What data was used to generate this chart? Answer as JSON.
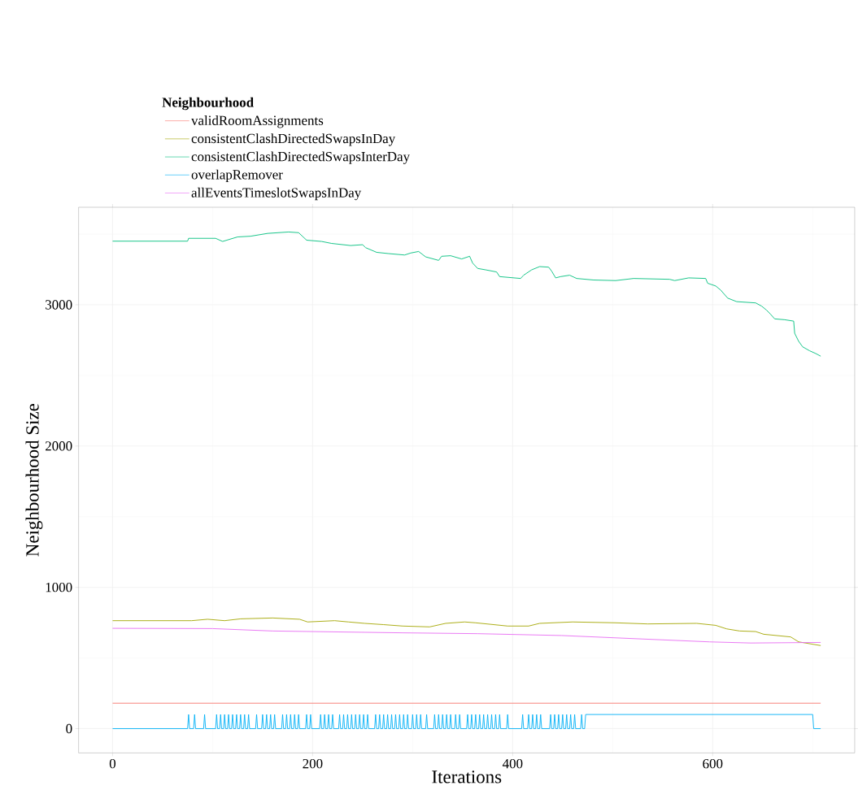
{
  "chart_data": {
    "type": "line",
    "xlabel": "Iterations",
    "ylabel": "Neighbourhood Size",
    "legend_title": "Neighbourhood",
    "xlim": [
      -34,
      742
    ],
    "ylim": [
      -172,
      3690
    ],
    "xticks": [
      0,
      200,
      400,
      600
    ],
    "yticks": [
      0,
      1000,
      2000,
      3000
    ],
    "grid": true,
    "legend": "top",
    "marker": "none",
    "line_style": "solid",
    "series": [
      {
        "name": "validRoomAssignments",
        "color": "#f8766d",
        "x": [
          0,
          708
        ],
        "values": [
          180,
          180
        ]
      },
      {
        "name": "consistentClashDirectedSwapsInDay",
        "color": "#a3a500",
        "x": [
          0,
          79,
          95,
          112,
          128,
          160,
          187,
          195,
          222,
          236,
          252,
          271,
          290,
          317,
          333,
          352,
          363,
          395,
          416,
          427,
          460,
          503,
          535,
          584,
          603,
          614,
          627,
          643,
          651,
          678,
          686,
          708
        ],
        "values": [
          764,
          764,
          774,
          764,
          777,
          783,
          774,
          755,
          764,
          755,
          745,
          736,
          726,
          720,
          745,
          755,
          749,
          726,
          726,
          745,
          755,
          749,
          741,
          745,
          731,
          706,
          691,
          687,
          668,
          649,
          614,
          588
        ]
      },
      {
        "name": "consistentClashDirectedSwapsInterDay",
        "color": "#00bf7d",
        "x": [
          0,
          75,
          76,
          103,
          110,
          125,
          138,
          155,
          176,
          186,
          194,
          209,
          219,
          238,
          250,
          253,
          264,
          276,
          292,
          298,
          306,
          313,
          326,
          329,
          338,
          349,
          357,
          360,
          365,
          373,
          384,
          387,
          408,
          411,
          419,
          427,
          436,
          439,
          443,
          448,
          457,
          464,
          481,
          503,
          521,
          557,
          562,
          576,
          593,
          595,
          603,
          608,
          615,
          624,
          643,
          649,
          654,
          658,
          662,
          672,
          681,
          682,
          686,
          690,
          697,
          703,
          708
        ],
        "values": [
          3450,
          3450,
          3470,
          3470,
          3448,
          3480,
          3485,
          3505,
          3515,
          3510,
          3457,
          3448,
          3434,
          3419,
          3425,
          3404,
          3371,
          3362,
          3352,
          3366,
          3377,
          3339,
          3314,
          3343,
          3347,
          3324,
          3343,
          3295,
          3257,
          3247,
          3232,
          3199,
          3186,
          3209,
          3247,
          3270,
          3266,
          3238,
          3190,
          3199,
          3209,
          3186,
          3175,
          3171,
          3186,
          3180,
          3171,
          3190,
          3186,
          3152,
          3133,
          3104,
          3047,
          3022,
          3013,
          2990,
          2961,
          2932,
          2900,
          2894,
          2884,
          2798,
          2741,
          2702,
          2674,
          2655,
          2636
        ]
      },
      {
        "name": "overlapRemover",
        "color": "#00b0f6",
        "x": [
          0,
          75,
          76,
          77,
          81,
          82,
          83,
          91,
          92,
          93,
          103,
          104,
          105,
          107,
          108,
          109,
          111,
          112,
          113,
          115,
          116,
          117,
          119,
          120,
          121,
          123,
          124,
          125,
          127,
          128,
          129,
          131,
          132,
          133,
          135,
          136,
          137,
          143,
          144,
          145,
          149,
          150,
          151,
          153,
          154,
          155,
          157,
          158,
          159,
          161,
          162,
          163,
          169,
          170,
          171,
          173,
          174,
          175,
          177,
          178,
          179,
          181,
          182,
          183,
          185,
          186,
          187,
          193,
          194,
          195,
          197,
          198,
          199,
          207,
          208,
          209,
          211,
          212,
          213,
          215,
          216,
          217,
          219,
          220,
          221,
          226,
          227,
          228,
          230,
          231,
          232,
          234,
          235,
          236,
          238,
          239,
          240,
          242,
          243,
          244,
          246,
          247,
          248,
          250,
          251,
          252,
          254,
          255,
          256,
          262,
          263,
          264,
          266,
          267,
          268,
          270,
          271,
          272,
          274,
          275,
          276,
          278,
          279,
          280,
          282,
          283,
          284,
          286,
          287,
          288,
          290,
          291,
          292,
          294,
          295,
          296,
          299,
          300,
          301,
          303,
          304,
          305,
          307,
          308,
          309,
          313,
          314,
          315,
          321,
          322,
          323,
          325,
          326,
          327,
          329,
          330,
          331,
          333,
          334,
          335,
          337,
          338,
          339,
          342,
          343,
          344,
          346,
          347,
          348,
          354,
          355,
          356,
          358,
          359,
          360,
          362,
          363,
          364,
          366,
          367,
          368,
          370,
          371,
          372,
          374,
          375,
          376,
          378,
          379,
          380,
          382,
          383,
          384,
          386,
          387,
          388,
          394,
          395,
          396,
          409,
          410,
          411,
          415,
          416,
          417,
          419,
          420,
          421,
          423,
          424,
          425,
          427,
          428,
          429,
          437,
          438,
          439,
          441,
          442,
          443,
          445,
          446,
          447,
          449,
          450,
          451,
          453,
          454,
          455,
          457,
          458,
          459,
          461,
          462,
          463,
          468,
          469,
          470,
          472,
          473,
          700,
          701,
          708
        ],
        "values": [
          0,
          0,
          100,
          0,
          0,
          100,
          0,
          0,
          100,
          0,
          0,
          100,
          0,
          0,
          100,
          0,
          0,
          100,
          0,
          0,
          100,
          0,
          0,
          100,
          0,
          0,
          100,
          0,
          0,
          100,
          0,
          0,
          100,
          0,
          0,
          100,
          0,
          0,
          100,
          0,
          0,
          100,
          0,
          0,
          100,
          0,
          0,
          100,
          0,
          0,
          100,
          0,
          0,
          100,
          0,
          0,
          100,
          0,
          0,
          100,
          0,
          0,
          100,
          0,
          0,
          100,
          0,
          0,
          100,
          0,
          0,
          100,
          0,
          0,
          100,
          0,
          0,
          100,
          0,
          0,
          100,
          0,
          0,
          100,
          0,
          0,
          100,
          0,
          0,
          100,
          0,
          0,
          100,
          0,
          0,
          100,
          0,
          0,
          100,
          0,
          0,
          100,
          0,
          0,
          100,
          0,
          0,
          100,
          0,
          0,
          100,
          0,
          0,
          100,
          0,
          0,
          100,
          0,
          0,
          100,
          0,
          0,
          100,
          0,
          0,
          100,
          0,
          0,
          100,
          0,
          0,
          100,
          0,
          0,
          100,
          0,
          0,
          100,
          0,
          0,
          100,
          0,
          0,
          100,
          0,
          0,
          100,
          0,
          0,
          100,
          0,
          0,
          100,
          0,
          0,
          100,
          0,
          0,
          100,
          0,
          0,
          100,
          0,
          0,
          100,
          0,
          0,
          100,
          0,
          0,
          100,
          0,
          0,
          100,
          0,
          0,
          100,
          0,
          0,
          100,
          0,
          0,
          100,
          0,
          0,
          100,
          0,
          0,
          100,
          0,
          0,
          100,
          0,
          0,
          100,
          0,
          0,
          100,
          0,
          0,
          100,
          0,
          0,
          100,
          0,
          0,
          100,
          0,
          0,
          100,
          0,
          0,
          100,
          0,
          0,
          100,
          0,
          0,
          100,
          0,
          0,
          100,
          0,
          0,
          100,
          0,
          0,
          100,
          0,
          0,
          100,
          0,
          0,
          100,
          0,
          0,
          100,
          0,
          0,
          100,
          100,
          0,
          0
        ]
      },
      {
        "name": "allEventsTimeslotSwapsInDay",
        "color": "#e76bf3",
        "x": [
          0,
          100,
          160,
          290,
          365,
          449,
          597,
          638,
          708
        ],
        "values": [
          710,
          708,
          691,
          678,
          672,
          659,
          614,
          606,
          610
        ]
      }
    ]
  }
}
